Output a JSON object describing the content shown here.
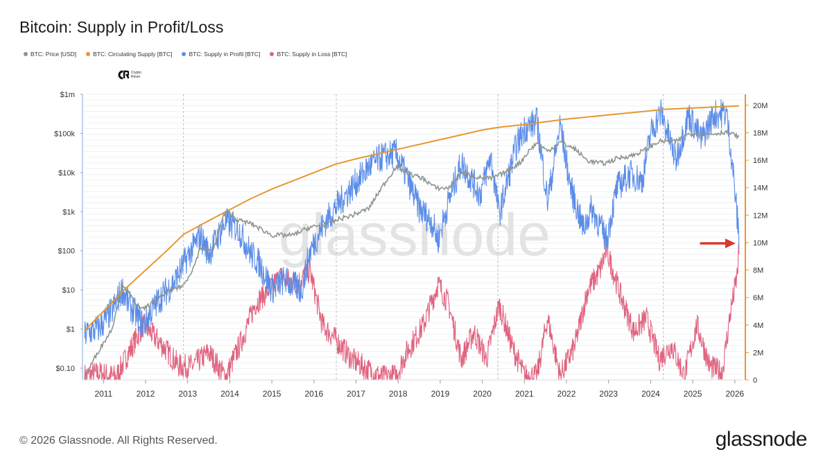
{
  "chart_data": {
    "type": "line",
    "title": "Bitcoin: Supply in Profit/Loss",
    "legend_position": "top-left",
    "series": [
      {
        "name": "BTC: Price [USD]",
        "color": "#8c9490",
        "axis": "left-log",
        "x": [
          2010.55,
          2010.9,
          2011.2,
          2011.45,
          2011.6,
          2011.9,
          2012.2,
          2012.6,
          2012.9,
          2013.15,
          2013.3,
          2013.6,
          2013.85,
          2013.95,
          2014.2,
          2014.5,
          2015.0,
          2015.5,
          2015.9,
          2016.3,
          2016.6,
          2016.9,
          2017.3,
          2017.6,
          2017.95,
          2018.3,
          2018.6,
          2018.9,
          2019.2,
          2019.5,
          2019.9,
          2020.2,
          2020.5,
          2020.9,
          2021.1,
          2021.3,
          2021.55,
          2021.85,
          2022.2,
          2022.5,
          2022.9,
          2023.2,
          2023.6,
          2023.95,
          2024.2,
          2024.6,
          2024.9,
          2025.1,
          2025.4,
          2025.8,
          2026.0,
          2026.1
        ],
        "values": [
          0.06,
          0.3,
          1.0,
          15,
          8,
          3,
          5,
          10,
          13,
          40,
          120,
          100,
          800,
          1000,
          600,
          500,
          250,
          250,
          400,
          450,
          650,
          800,
          1200,
          4000,
          14000,
          9000,
          7000,
          4000,
          4000,
          10000,
          7500,
          7000,
          9500,
          18000,
          35000,
          58000,
          35000,
          60000,
          40000,
          20000,
          17000,
          23000,
          28000,
          42000,
          63000,
          62000,
          95000,
          100000,
          95000,
          110000,
          90000,
          80000
        ]
      },
      {
        "name": "BTC: Circulating Supply [BTC]",
        "color": "#e8962e",
        "axis": "right",
        "x": [
          2010.55,
          2011.0,
          2011.5,
          2012.0,
          2012.5,
          2012.9,
          2013.5,
          2014.0,
          2014.5,
          2015.0,
          2015.5,
          2016.0,
          2016.5,
          2017.0,
          2018.0,
          2019.0,
          2020.0,
          2020.4,
          2021.0,
          2022.0,
          2023.0,
          2024.0,
          2024.3,
          2025.0,
          2026.1
        ],
        "values": [
          3.6,
          5.0,
          6.6,
          8.0,
          9.4,
          10.6,
          11.6,
          12.4,
          13.2,
          13.9,
          14.5,
          15.1,
          15.7,
          16.1,
          16.8,
          17.5,
          18.2,
          18.4,
          18.6,
          19.0,
          19.3,
          19.6,
          19.7,
          19.8,
          19.95
        ]
      },
      {
        "name": "BTC: Supply in Profit [BTC]",
        "color": "#5b8de8",
        "axis": "right",
        "x": [
          2010.55,
          2010.9,
          2011.2,
          2011.45,
          2011.6,
          2011.95,
          2012.3,
          2012.7,
          2013.0,
          2013.3,
          2013.5,
          2013.9,
          2014.2,
          2014.5,
          2014.7,
          2015.0,
          2015.3,
          2015.7,
          2015.9,
          2016.2,
          2016.5,
          2016.9,
          2017.3,
          2017.6,
          2017.95,
          2018.2,
          2018.5,
          2018.8,
          2018.95,
          2019.2,
          2019.5,
          2019.7,
          2019.95,
          2020.2,
          2020.4,
          2020.8,
          2021.0,
          2021.3,
          2021.55,
          2021.85,
          2022.1,
          2022.4,
          2022.6,
          2022.95,
          2023.2,
          2023.5,
          2023.8,
          2024.0,
          2024.25,
          2024.6,
          2024.9,
          2025.2,
          2025.5,
          2025.8,
          2025.95,
          2026.05,
          2026.1
        ],
        "values": [
          3.3,
          3.8,
          5.0,
          6.6,
          5.5,
          4.0,
          5.8,
          7.2,
          9.0,
          10.5,
          9.2,
          11.5,
          11.0,
          9.2,
          8.5,
          6.6,
          7.3,
          6.5,
          9.3,
          11.2,
          12.5,
          14.0,
          15.5,
          16.2,
          16.5,
          14.8,
          12.5,
          11.5,
          10.2,
          13.0,
          15.8,
          14.8,
          13.5,
          16.3,
          12.0,
          17.0,
          18.3,
          18.8,
          13.0,
          18.6,
          14.0,
          11.0,
          12.5,
          10.2,
          14.0,
          15.0,
          14.5,
          18.0,
          19.5,
          16.0,
          19.3,
          17.5,
          19.3,
          19.5,
          15.5,
          12.0,
          10.4
        ]
      },
      {
        "name": "BTC: Supply in Loss [BTC]",
        "color": "#e0637f",
        "axis": "right",
        "x": [
          2010.55,
          2010.9,
          2011.3,
          2011.6,
          2011.95,
          2012.4,
          2012.8,
          2013.1,
          2013.5,
          2013.9,
          2014.3,
          2014.6,
          2014.9,
          2015.2,
          2015.6,
          2015.9,
          2016.2,
          2016.5,
          2016.9,
          2017.3,
          2017.6,
          2017.95,
          2018.2,
          2018.6,
          2018.95,
          2019.2,
          2019.5,
          2019.8,
          2020.1,
          2020.4,
          2020.7,
          2021.0,
          2021.3,
          2021.55,
          2021.85,
          2022.2,
          2022.5,
          2022.8,
          2022.95,
          2023.3,
          2023.6,
          2023.9,
          2024.2,
          2024.5,
          2024.8,
          2025.1,
          2025.4,
          2025.7,
          2025.9,
          2026.05,
          2026.1
        ],
        "values": [
          0.3,
          0.5,
          0.2,
          2.0,
          4.0,
          2.5,
          1.0,
          1.0,
          2.0,
          0.2,
          3.0,
          5.5,
          6.5,
          7.5,
          7.0,
          8.0,
          4.0,
          3.0,
          1.5,
          0.7,
          0.2,
          0.3,
          2.0,
          4.0,
          7.0,
          5.5,
          1.5,
          3.5,
          1.5,
          5.5,
          2.5,
          0.3,
          0.3,
          4.5,
          0.3,
          2.5,
          6.5,
          8.0,
          9.5,
          6.0,
          3.5,
          4.5,
          1.5,
          2.5,
          0.3,
          4.0,
          1.0,
          0.5,
          5.0,
          7.5,
          9.4
        ]
      }
    ],
    "left_axis": {
      "scale": "log",
      "ylim": [
        0.05,
        1000000
      ],
      "ticks": [
        "$0.10",
        "$1",
        "$10",
        "$100",
        "$1k",
        "$10k",
        "$100k",
        "$1m"
      ],
      "tick_values": [
        0.1,
        1,
        10,
        100,
        1000,
        10000,
        100000,
        1000000
      ]
    },
    "right_axis": {
      "ylim": [
        0,
        20.8
      ],
      "ticks": [
        "0",
        "2M",
        "4M",
        "6M",
        "8M",
        "10M",
        "12M",
        "14M",
        "16M",
        "18M",
        "20M"
      ],
      "tick_values": [
        0,
        2,
        4,
        6,
        8,
        10,
        12,
        14,
        16,
        18,
        20
      ]
    },
    "x_axis": {
      "xlim": [
        2010.55,
        2026.2
      ],
      "ticks": [
        "2011",
        "2012",
        "2013",
        "2014",
        "2015",
        "2016",
        "2017",
        "2018",
        "2019",
        "2020",
        "2021",
        "2022",
        "2023",
        "2024",
        "2025",
        "2026"
      ],
      "tick_values": [
        2011,
        2012,
        2013,
        2014,
        2015,
        2016,
        2017,
        2018,
        2019,
        2020,
        2021,
        2022,
        2023,
        2024,
        2025,
        2026
      ]
    },
    "halving_lines": [
      2012.9,
      2016.53,
      2020.37,
      2024.3
    ],
    "watermark": "glassnode",
    "annotation_arrow_color": "#d93a2f"
  },
  "badge": {
    "text": "Crypto Rover"
  },
  "footer": {
    "copyright": "© 2026 Glassnode. All Rights Reserved."
  },
  "brand": {
    "logo_text": "glassnode"
  }
}
